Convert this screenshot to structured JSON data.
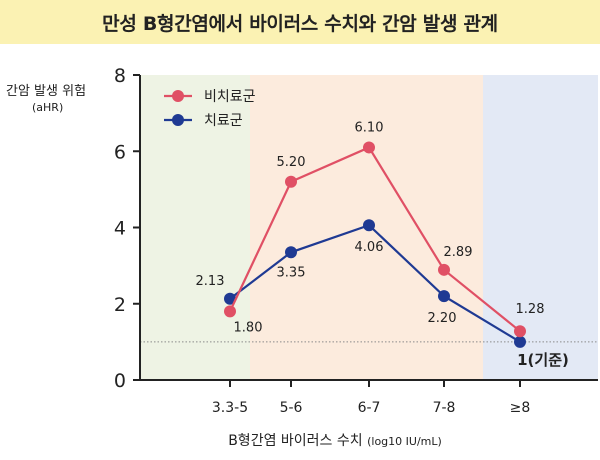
{
  "title": "만성 B형간염에서 바이러스 수치와 간암 발생 관계",
  "y_axis_title": "간암 발생 위험",
  "y_axis_subtitle": "(aHR)",
  "x_axis_title": "B형간염 바이러스 수치",
  "x_axis_unit": "(log10 IU/mL)",
  "reference_label": "1(기준)",
  "colors": {
    "untreated": "#e05065",
    "treated": "#1f3a93",
    "zone_low": "#eef3e4",
    "zone_mid": "#fcebdd",
    "zone_high": "#e3e9f5",
    "title_bg": "#fbf2b3"
  },
  "chart_data": {
    "type": "line",
    "categories": [
      "3.3-5",
      "5-6",
      "6-7",
      "7-8",
      "≥8"
    ],
    "ylim": [
      0,
      8
    ],
    "yticks": [
      0,
      2,
      4,
      6,
      8
    ],
    "reference_line": 1,
    "legend_position": "top-left",
    "series": [
      {
        "name": "비치료군",
        "key": "untreated",
        "values": [
          1.8,
          5.2,
          6.1,
          2.89,
          1.28
        ],
        "labels": [
          "1.80",
          "5.20",
          "6.10",
          "2.89",
          "1.28"
        ]
      },
      {
        "name": "치료군",
        "key": "treated",
        "values": [
          2.13,
          3.35,
          4.06,
          2.2,
          1.0
        ],
        "labels": [
          "2.13",
          "3.35",
          "4.06",
          "2.20",
          ""
        ]
      }
    ]
  }
}
